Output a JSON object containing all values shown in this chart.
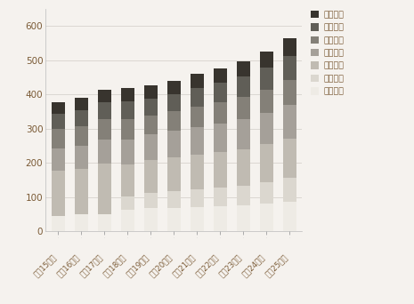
{
  "years": [
    "平成15年度",
    "平成16年度",
    "平成17年度",
    "平成18年度",
    "平成19年度",
    "平成20年度",
    "平成21年度",
    "平成22年度",
    "平成23年度",
    "平成24年度",
    "平成25年度"
  ],
  "categories": [
    "要支援１",
    "要支援２",
    "要介護１",
    "要介護２",
    "要介護３",
    "要介護４",
    "要介護５"
  ],
  "data": {
    "要支援１": [
      45,
      48,
      50,
      62,
      67,
      67,
      70,
      72,
      75,
      80,
      87
    ],
    "要支援２": [
      0,
      0,
      0,
      40,
      46,
      49,
      52,
      55,
      58,
      63,
      69
    ],
    "要介護１": [
      133,
      135,
      148,
      94,
      96,
      99,
      102,
      105,
      107,
      111,
      115
    ],
    "要介護２": [
      65,
      68,
      70,
      72,
      75,
      78,
      80,
      84,
      88,
      93,
      99
    ],
    "要介護３": [
      55,
      57,
      59,
      61,
      55,
      57,
      60,
      62,
      65,
      68,
      72
    ],
    "要介護４": [
      45,
      47,
      50,
      52,
      50,
      52,
      55,
      57,
      60,
      65,
      71
    ],
    "要介護５": [
      34,
      35,
      36,
      37,
      39,
      37,
      41,
      42,
      43,
      47,
      52
    ]
  },
  "colors": {
    "要支援１": "#eeebe5",
    "要支援２": "#dbd7cf",
    "要介護１": "#c0bbb2",
    "要介護２": "#a5a099",
    "要介護３": "#848078",
    "要介護４": "#605e57",
    "要介護５": "#38342e"
  },
  "ylim": [
    0,
    650
  ],
  "yticks": [
    0,
    100,
    200,
    300,
    400,
    500,
    600
  ],
  "background_color": "#f5f2ee",
  "tick_color": "#7a5a35",
  "grid_color": "#d0ccc6"
}
